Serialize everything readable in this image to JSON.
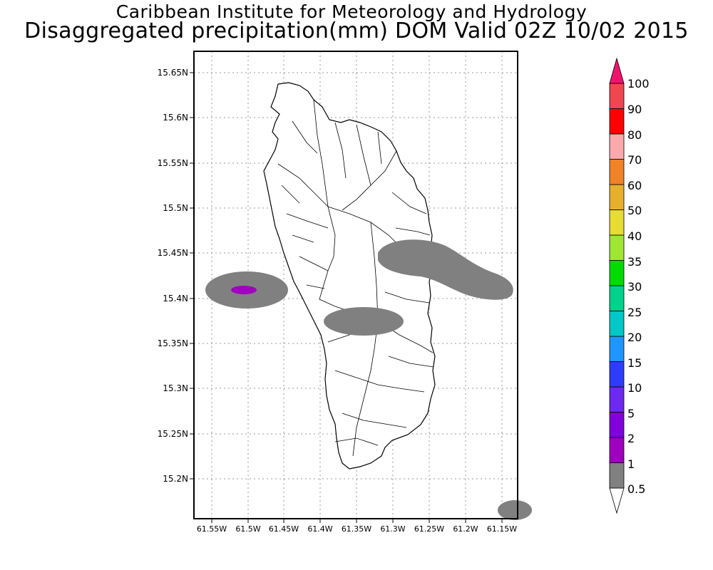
{
  "header": {
    "title": "Caribbean Institute for Meteorology and Hydrology",
    "subtitle": "Disaggregated precipitation(mm) DOM Valid 02Z 10/02 2015"
  },
  "map": {
    "lon_range": [
      -61.575,
      -61.14
    ],
    "lat_range": [
      15.155,
      15.68
    ],
    "y_ticks": [
      "15.65N",
      "15.6N",
      "15.55N",
      "15.5N",
      "15.45N",
      "15.4N",
      "15.35N",
      "15.3N",
      "15.25N",
      "15.2N"
    ],
    "x_ticks": [
      "61.55W",
      "61.5W",
      "61.45W",
      "61.4W",
      "61.35W",
      "61.3W",
      "61.25W",
      "61.2W",
      "61.15W"
    ],
    "grid": true
  },
  "legend": {
    "levels": [
      "0.5",
      "1",
      "2",
      "5",
      "10",
      "15",
      "20",
      "25",
      "30",
      "35",
      "40",
      "50",
      "60",
      "70",
      "80",
      "90",
      "100"
    ],
    "colors": [
      "#808080",
      "#a000c0",
      "#8200dc",
      "#6e28f0",
      "#2d3cff",
      "#1e96ff",
      "#00c8c8",
      "#00d28c",
      "#00dc00",
      "#a0e632",
      "#e6dc32",
      "#e6af2d",
      "#f08228",
      "#faaaaa",
      "#ff0000",
      "#f04650",
      "#f0146e"
    ]
  }
}
